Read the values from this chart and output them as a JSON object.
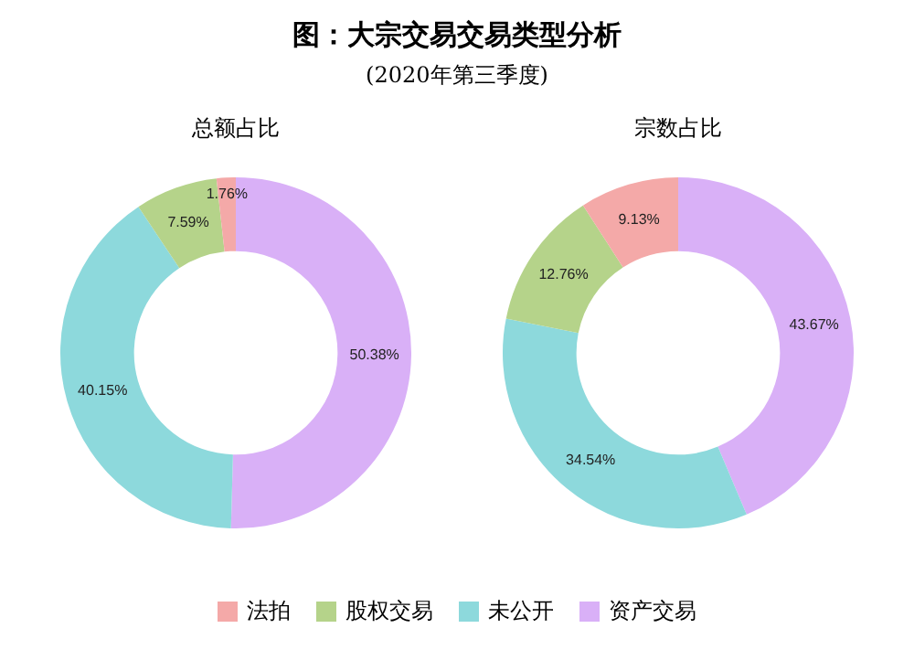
{
  "chart_data": [
    {
      "type": "other",
      "title": "图：大宗交易交易类型分析",
      "subtitle": "(2020年第三季度)"
    },
    {
      "type": "donut",
      "title": "总额占比",
      "categories": [
        "法拍",
        "股权交易",
        "未公开",
        "资产交易"
      ],
      "colors": [
        "#f4a9a8",
        "#b5d38a",
        "#8dd9dc",
        "#d9b0f7"
      ],
      "values": [
        1.76,
        7.59,
        40.15,
        50.38
      ],
      "value_labels": [
        "1.76%",
        "7.59%",
        "40.15%",
        "50.38%"
      ],
      "legend": "bottom"
    },
    {
      "type": "donut",
      "title": "宗数占比",
      "categories": [
        null,
        null,
        null,
        null
      ],
      "colors": [
        "#f4a9a8",
        "#b5d38a",
        "#8dd9dc",
        "#d9b0f7"
      ],
      "values": [
        9.13,
        12.76,
        34.54,
        43.67
      ],
      "value_labels": [
        "9.13%",
        "12.76%",
        "34.54%",
        "43.67%"
      ]
    }
  ]
}
